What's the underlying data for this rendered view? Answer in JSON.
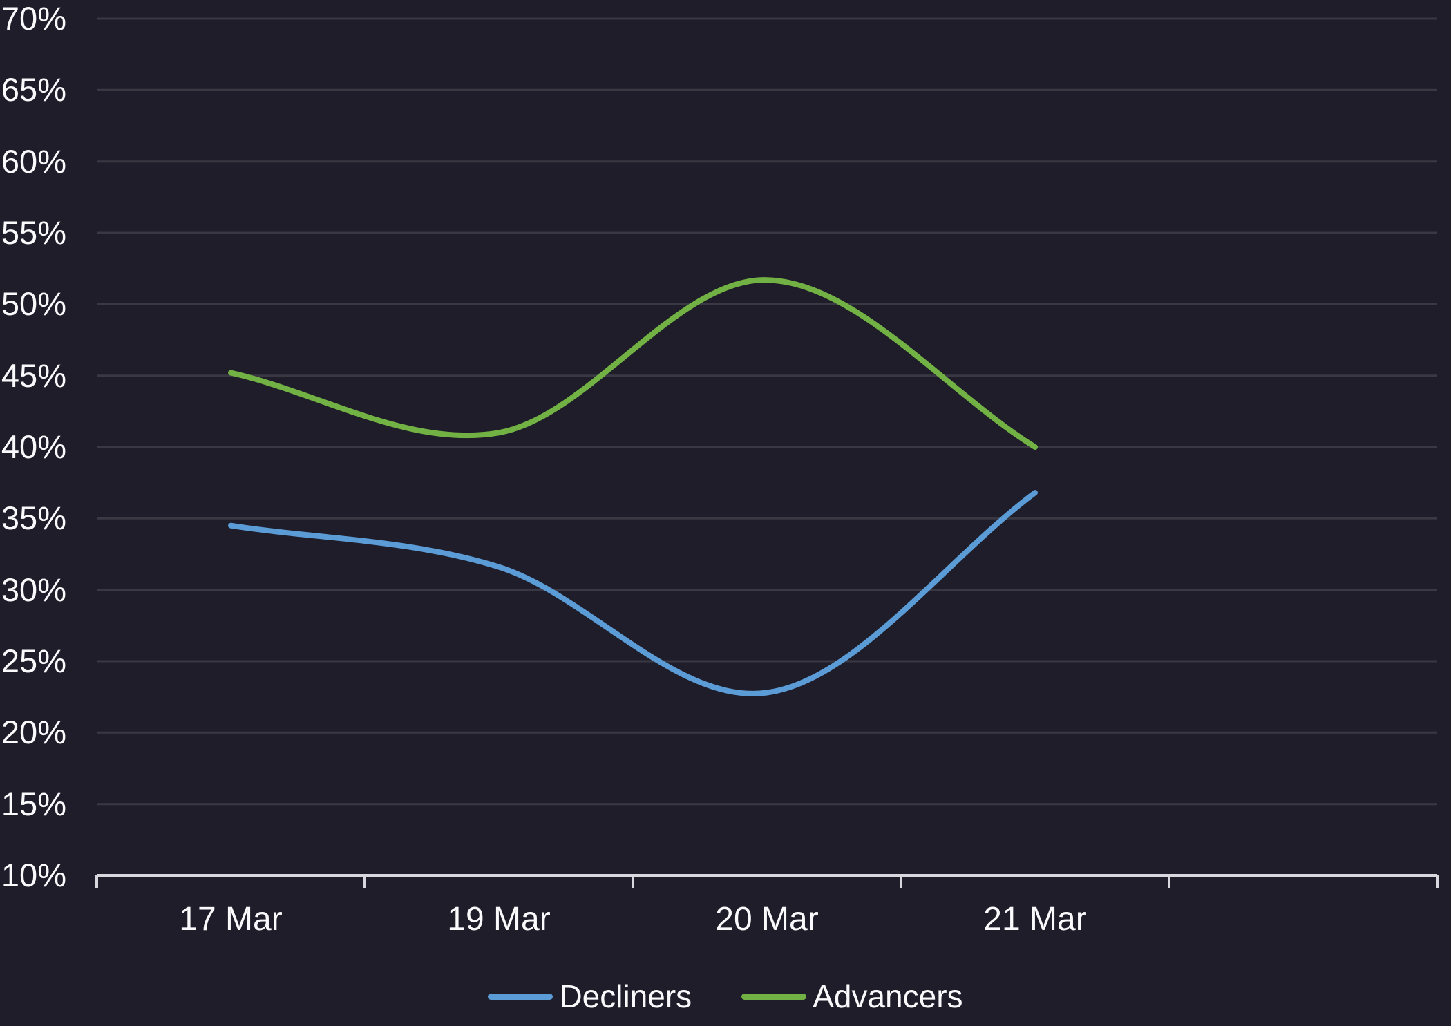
{
  "chart_style": {
    "background_color": "#1f1d29",
    "text_color": "#fafafc",
    "grid_color": "#3a3843",
    "axis_color": "#d8d7dd"
  },
  "chart_data": {
    "type": "line",
    "title": "",
    "categories": [
      "17 Mar",
      "19 Mar",
      "20 Mar",
      "21 Mar"
    ],
    "series": [
      {
        "name": "Decliners",
        "color": "#5b9cd7",
        "values": [
          34.5,
          31.6,
          22.8,
          36.8
        ]
      },
      {
        "name": "Advancers",
        "color": "#72b244",
        "values": [
          45.2,
          41.0,
          51.7,
          40.0
        ]
      }
    ],
    "ylim": [
      10,
      70
    ],
    "ytick_step": 5,
    "ytick_labels": [
      "10%",
      "15%",
      "20%",
      "25%",
      "30%",
      "35%",
      "40%",
      "45%",
      "50%",
      "55%",
      "60%",
      "65%",
      "70%"
    ],
    "grid": true,
    "legend_position": "bottom",
    "curve": "smooth",
    "trailing_empty_bands": 1
  }
}
